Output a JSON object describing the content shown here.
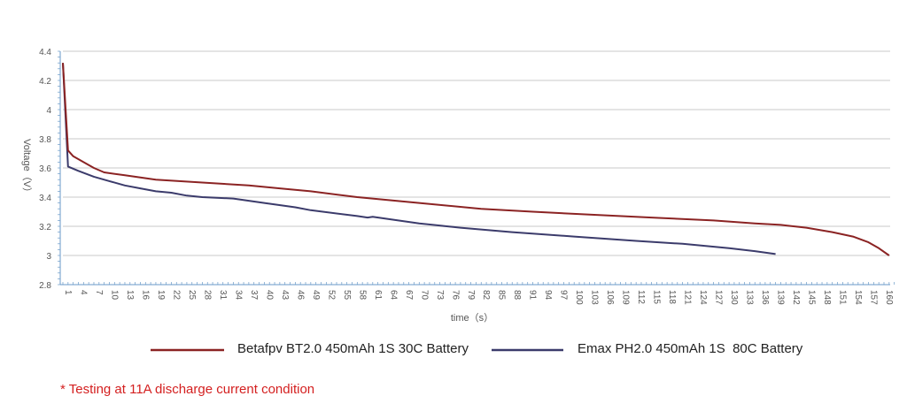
{
  "chart_data": {
    "type": "line",
    "title": "",
    "xlabel": "time（s）",
    "ylabel": "Voltage（V）",
    "xlim": [
      1,
      162
    ],
    "ylim": [
      2.8,
      4.4
    ],
    "yticks": [
      2.8,
      3,
      3.2,
      3.4,
      3.6,
      3.8,
      4,
      4.2,
      4.4
    ],
    "xtick_step": 3,
    "xtick_last": 160,
    "grid": true,
    "legend_position": "bottom",
    "series": [
      {
        "name": "Betafpv BT2.0 450mAh 1S 30C Battery",
        "color": "#8b2323",
        "x": [
          1,
          2,
          3,
          5,
          7,
          9,
          13,
          19,
          28,
          37,
          43,
          49,
          58,
          70,
          82,
          92,
          103,
          115,
          127,
          135,
          140,
          145,
          150,
          154,
          157,
          159,
          161
        ],
        "y": [
          4.32,
          3.72,
          3.68,
          3.64,
          3.6,
          3.57,
          3.55,
          3.52,
          3.5,
          3.48,
          3.46,
          3.44,
          3.4,
          3.36,
          3.32,
          3.3,
          3.28,
          3.26,
          3.24,
          3.22,
          3.21,
          3.19,
          3.16,
          3.13,
          3.09,
          3.05,
          3.0
        ]
      },
      {
        "name": "Emax PH2.0 450mAh 1S  80C Battery",
        "color": "#3b3b6b",
        "x": [
          1,
          2,
          4,
          7,
          10,
          13,
          16,
          19,
          22,
          25,
          28,
          34,
          40,
          46,
          49,
          58,
          60,
          61,
          70,
          78,
          88,
          100,
          112,
          121,
          130,
          135,
          139
        ],
        "y": [
          4.32,
          3.61,
          3.58,
          3.54,
          3.51,
          3.48,
          3.46,
          3.44,
          3.43,
          3.41,
          3.4,
          3.39,
          3.36,
          3.33,
          3.31,
          3.27,
          3.26,
          3.265,
          3.22,
          3.19,
          3.16,
          3.13,
          3.1,
          3.08,
          3.05,
          3.03,
          3.01
        ]
      }
    ]
  },
  "footnote": "* Testing at 11A discharge current condition"
}
